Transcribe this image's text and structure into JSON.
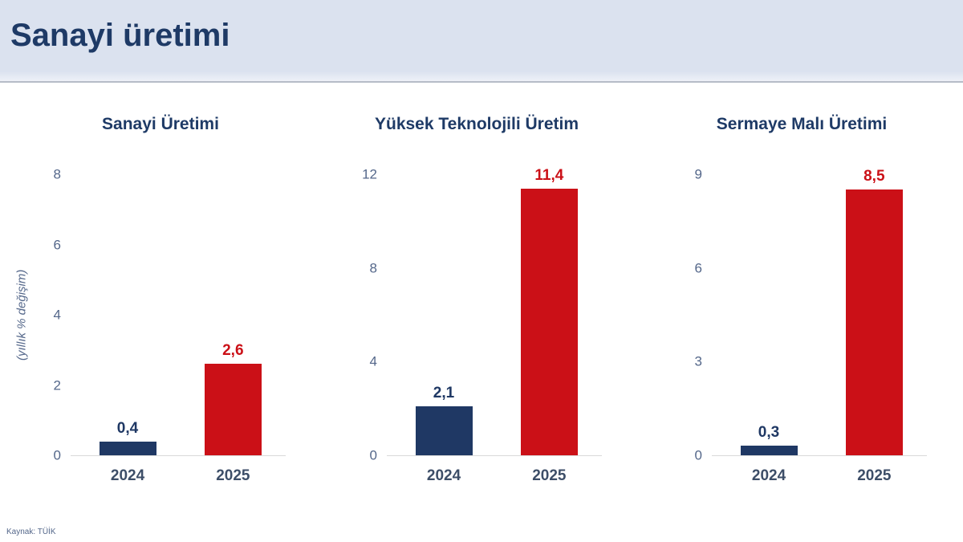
{
  "header": {
    "title": "Sanayi üretimi"
  },
  "footer": {
    "source": "Kaynak: TÜİK"
  },
  "y_axis_unit_label": "(yıllık % değişim)",
  "colors": {
    "navy": "#1f3864",
    "red": "#cb1017",
    "title_navy": "#1e3a66",
    "axis_text": "#54678a",
    "xlabel_text": "#3d4e68",
    "axis_line": "#d9d9d9",
    "header_bg": "#dbe2ef"
  },
  "chart_data": [
    {
      "type": "bar",
      "title": "Sanayi Üretimi",
      "categories": [
        "2024",
        "2025"
      ],
      "values": [
        0.4,
        2.6
      ],
      "value_labels": [
        "0,4",
        "2,6"
      ],
      "bar_colors": [
        "navy",
        "red"
      ],
      "ylabel": "(yıllık % değişim)",
      "xlabel": "",
      "ylim": [
        0,
        8
      ],
      "yticks": [
        0,
        2,
        4,
        6,
        8
      ],
      "grid": false,
      "legend": false
    },
    {
      "type": "bar",
      "title": "Yüksek Teknolojili Üretim",
      "categories": [
        "2024",
        "2025"
      ],
      "values": [
        2.1,
        11.4
      ],
      "value_labels": [
        "2,1",
        "11,4"
      ],
      "bar_colors": [
        "navy",
        "red"
      ],
      "ylabel": "",
      "xlabel": "",
      "ylim": [
        0,
        12
      ],
      "yticks": [
        0,
        4,
        8,
        12
      ],
      "grid": false,
      "legend": false
    },
    {
      "type": "bar",
      "title": "Sermaye Malı Üretimi",
      "categories": [
        "2024",
        "2025"
      ],
      "values": [
        0.3,
        8.5
      ],
      "value_labels": [
        "0,3",
        "8,5"
      ],
      "bar_colors": [
        "navy",
        "red"
      ],
      "ylabel": "",
      "xlabel": "",
      "ylim": [
        0,
        9
      ],
      "yticks": [
        0,
        3,
        6,
        9
      ],
      "grid": false,
      "legend": false
    }
  ]
}
